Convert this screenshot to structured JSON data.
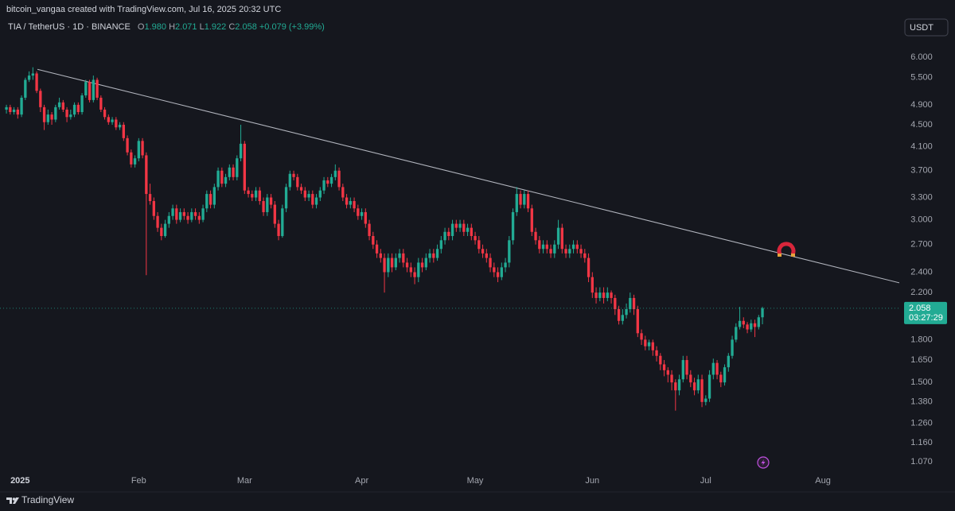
{
  "header": {
    "credit": "bitcoin_vangaa created with TradingView.com, Jul 16, 2025 20:32 UTC"
  },
  "footer": {
    "brand": "TradingView"
  },
  "chart_data": {
    "type": "candlestick",
    "title": "TIA / TetherUS · 1D · BINANCE",
    "legend": {
      "open_label": "O",
      "open": "1.980",
      "high_label": "H",
      "high": "2.071",
      "low_label": "L",
      "low": "1.922",
      "close_label": "C",
      "close": "2.058",
      "change": "+0.079 (+3.99%)"
    },
    "currency": "USDT",
    "last_price_label": "2.058",
    "countdown": "03:27:29",
    "up_color": "#22ab94",
    "down_color": "#f23645",
    "log_scale": true,
    "xlim": [
      -1.7,
      236.2
    ],
    "ylim": [
      1.02,
      7.66
    ],
    "yticks": [
      {
        "value": 6,
        "label": "6.000"
      },
      {
        "value": 5.5,
        "label": "5.500"
      },
      {
        "value": 4.9,
        "label": "4.900"
      },
      {
        "value": 4.5,
        "label": "4.500"
      },
      {
        "value": 4.1,
        "label": "4.100"
      },
      {
        "value": 3.7,
        "label": "3.700"
      },
      {
        "value": 3.3,
        "label": "3.300"
      },
      {
        "value": 3,
        "label": "3.000"
      },
      {
        "value": 2.7,
        "label": "2.700"
      },
      {
        "value": 2.4,
        "label": "2.400"
      },
      {
        "value": 2.2,
        "label": "2.200"
      },
      {
        "value": 1.8,
        "label": "1.800"
      },
      {
        "value": 1.65,
        "label": "1.650"
      },
      {
        "value": 1.5,
        "label": "1.500"
      },
      {
        "value": 1.38,
        "label": "1.380"
      },
      {
        "value": 1.26,
        "label": "1.260"
      },
      {
        "value": 1.16,
        "label": "1.160"
      },
      {
        "value": 1.07,
        "label": "1.070"
      }
    ],
    "xticks": [
      {
        "value": 4,
        "label": "2025"
      },
      {
        "value": 35,
        "label": "Feb"
      },
      {
        "value": 63,
        "label": "Mar"
      },
      {
        "value": 94,
        "label": "Apr"
      },
      {
        "value": 124,
        "label": "May"
      },
      {
        "value": 155,
        "label": "Jun"
      },
      {
        "value": 185,
        "label": "Jul"
      },
      {
        "value": 216,
        "label": "Aug"
      }
    ],
    "trendline": {
      "x": [
        8.2,
        237.7
      ],
      "y": [
        5.7,
        2.28
      ]
    },
    "open": [
      4.8,
      4.85,
      4.75,
      4.8,
      4.7,
      5.05,
      5.45,
      5.55,
      5.6,
      5.2,
      4.85,
      4.55,
      4.7,
      4.6,
      4.85,
      4.95,
      4.8,
      4.65,
      4.7,
      4.9,
      4.75,
      5.1,
      5.4,
      5.0,
      5.45,
      5.05,
      4.8,
      4.65,
      4.55,
      4.6,
      4.45,
      4.5,
      4.25,
      4.0,
      3.8,
      3.9,
      4.2,
      3.95,
      3.35,
      3.25,
      3.05,
      2.9,
      2.8,
      2.95,
      3.05,
      3.15,
      3.0,
      3.1,
      3.05,
      3.0,
      3.1,
      3.05,
      3.0,
      3.15,
      3.35,
      3.2,
      3.45,
      3.7,
      3.5,
      3.6,
      3.75,
      3.6,
      3.9,
      4.15,
      3.4,
      3.35,
      3.3,
      3.4,
      3.25,
      3.1,
      3.3,
      3.2,
      2.95,
      2.8,
      3.15,
      3.45,
      3.65,
      3.6,
      3.45,
      3.4,
      3.3,
      3.35,
      3.2,
      3.3,
      3.4,
      3.55,
      3.5,
      3.6,
      3.7,
      3.45,
      3.3,
      3.2,
      3.25,
      3.15,
      3.05,
      3.1,
      2.95,
      2.8,
      2.7,
      2.6,
      2.55,
      2.4,
      2.55,
      2.45,
      2.55,
      2.6,
      2.5,
      2.45,
      2.4,
      2.35,
      2.5,
      2.45,
      2.55,
      2.6,
      2.55,
      2.65,
      2.75,
      2.85,
      2.8,
      2.95,
      2.9,
      2.95,
      2.85,
      2.9,
      2.8,
      2.75,
      2.65,
      2.6,
      2.55,
      2.45,
      2.4,
      2.35,
      2.45,
      2.5,
      2.75,
      3.1,
      3.35,
      3.2,
      3.35,
      3.15,
      2.85,
      2.75,
      2.65,
      2.7,
      2.65,
      2.6,
      2.7,
      2.9,
      2.65,
      2.6,
      2.65,
      2.7,
      2.65,
      2.6,
      2.55,
      2.35,
      2.2,
      2.15,
      2.2,
      2.15,
      2.2,
      2.15,
      2.05,
      1.95,
      2.0,
      2.05,
      2.15,
      2.05,
      1.85,
      1.8,
      1.75,
      1.78,
      1.72,
      1.68,
      1.62,
      1.58,
      1.55,
      1.5,
      1.45,
      1.52,
      1.65,
      1.55,
      1.5,
      1.45,
      1.52,
      1.38,
      1.4,
      1.55,
      1.63,
      1.55,
      1.5,
      1.6,
      1.68,
      1.8,
      1.9,
      1.95,
      1.92,
      1.88,
      1.93,
      1.9,
      1.98
    ],
    "high": [
      4.9,
      4.9,
      4.85,
      4.85,
      5.1,
      5.5,
      5.65,
      5.75,
      5.65,
      5.25,
      4.9,
      4.8,
      4.75,
      4.9,
      5.05,
      5.0,
      4.85,
      4.8,
      4.95,
      4.95,
      5.15,
      5.45,
      5.45,
      5.55,
      5.5,
      5.1,
      4.85,
      4.7,
      4.65,
      4.65,
      4.55,
      4.55,
      4.3,
      4.05,
      3.95,
      4.25,
      4.25,
      4.0,
      3.5,
      3.3,
      3.1,
      2.95,
      3.0,
      3.1,
      3.2,
      3.2,
      3.15,
      3.15,
      3.1,
      3.15,
      3.15,
      3.1,
      3.2,
      3.4,
      3.4,
      3.5,
      3.75,
      3.75,
      3.65,
      3.8,
      3.8,
      3.95,
      4.5,
      4.2,
      3.45,
      3.4,
      3.45,
      3.45,
      3.3,
      3.35,
      3.35,
      3.25,
      3.0,
      3.2,
      3.5,
      3.7,
      3.7,
      3.65,
      3.5,
      3.45,
      3.4,
      3.4,
      3.35,
      3.45,
      3.6,
      3.6,
      3.65,
      3.8,
      3.75,
      3.5,
      3.35,
      3.3,
      3.3,
      3.2,
      3.15,
      3.15,
      3.0,
      2.85,
      2.75,
      2.65,
      2.6,
      2.6,
      2.6,
      2.6,
      2.65,
      2.65,
      2.55,
      2.5,
      2.45,
      2.55,
      2.55,
      2.6,
      2.65,
      2.65,
      2.7,
      2.8,
      2.9,
      2.9,
      3.0,
      3.0,
      3.0,
      3.0,
      2.95,
      2.95,
      2.85,
      2.8,
      2.7,
      2.65,
      2.6,
      2.5,
      2.45,
      2.5,
      2.55,
      2.8,
      3.15,
      3.45,
      3.4,
      3.4,
      3.4,
      3.2,
      2.9,
      2.8,
      2.75,
      2.75,
      2.7,
      2.75,
      3.0,
      2.95,
      2.7,
      2.7,
      2.75,
      2.75,
      2.7,
      2.65,
      2.6,
      2.4,
      2.25,
      2.25,
      2.25,
      2.25,
      2.22,
      2.18,
      2.08,
      2.05,
      2.1,
      2.2,
      2.18,
      2.08,
      1.88,
      1.83,
      1.8,
      1.8,
      1.75,
      1.7,
      1.65,
      1.6,
      1.58,
      1.52,
      1.55,
      1.68,
      1.68,
      1.58,
      1.53,
      1.55,
      1.55,
      1.42,
      1.58,
      1.66,
      1.65,
      1.57,
      1.62,
      1.7,
      1.83,
      1.93,
      2.07,
      1.98,
      1.94,
      1.96,
      1.96,
      2.0,
      2.071
    ],
    "low": [
      4.72,
      4.7,
      4.7,
      4.62,
      4.65,
      5.0,
      5.4,
      5.45,
      5.15,
      4.75,
      4.4,
      4.5,
      4.5,
      4.55,
      4.8,
      4.75,
      4.55,
      4.6,
      4.65,
      4.7,
      4.7,
      5.05,
      4.95,
      4.95,
      5.0,
      4.75,
      4.6,
      4.5,
      4.5,
      4.4,
      4.4,
      4.2,
      3.95,
      3.75,
      3.75,
      3.85,
      3.9,
      2.37,
      3.2,
      3.0,
      2.85,
      2.75,
      2.78,
      2.9,
      3.0,
      2.95,
      2.97,
      3.0,
      2.95,
      2.97,
      3.0,
      2.95,
      2.97,
      3.1,
      3.15,
      3.15,
      3.4,
      3.45,
      3.45,
      3.55,
      3.55,
      3.55,
      3.85,
      3.35,
      3.3,
      3.25,
      3.25,
      3.2,
      3.05,
      3.05,
      3.15,
      2.9,
      2.75,
      2.78,
      3.1,
      3.4,
      3.55,
      3.4,
      3.35,
      3.25,
      3.25,
      3.15,
      3.15,
      3.25,
      3.35,
      3.45,
      3.45,
      3.55,
      3.4,
      3.25,
      3.15,
      3.15,
      3.1,
      3.0,
      3.0,
      2.9,
      2.75,
      2.65,
      2.55,
      2.5,
      2.2,
      2.35,
      2.4,
      2.42,
      2.5,
      2.45,
      2.4,
      2.35,
      2.28,
      2.3,
      2.4,
      2.42,
      2.5,
      2.5,
      2.52,
      2.6,
      2.7,
      2.75,
      2.75,
      2.85,
      2.85,
      2.8,
      2.8,
      2.75,
      2.7,
      2.6,
      2.55,
      2.5,
      2.4,
      2.35,
      2.3,
      2.32,
      2.4,
      2.45,
      2.7,
      3.05,
      3.15,
      3.15,
      3.1,
      2.8,
      2.7,
      2.6,
      2.6,
      2.6,
      2.55,
      2.55,
      2.65,
      2.6,
      2.55,
      2.55,
      2.6,
      2.6,
      2.55,
      2.5,
      2.3,
      2.15,
      2.1,
      2.12,
      2.1,
      2.12,
      2.1,
      2.0,
      1.92,
      1.92,
      1.97,
      2.02,
      2.0,
      1.82,
      1.76,
      1.72,
      1.72,
      1.68,
      1.64,
      1.58,
      1.54,
      1.5,
      1.45,
      1.33,
      1.42,
      1.5,
      1.52,
      1.47,
      1.42,
      1.43,
      1.35,
      1.36,
      1.38,
      1.52,
      1.52,
      1.47,
      1.48,
      1.57,
      1.66,
      1.78,
      1.88,
      1.89,
      1.85,
      1.86,
      1.82,
      1.88,
      1.922
    ],
    "close": [
      4.85,
      4.75,
      4.8,
      4.7,
      5.05,
      5.45,
      5.55,
      5.6,
      5.2,
      4.85,
      4.55,
      4.7,
      4.6,
      4.85,
      4.95,
      4.8,
      4.65,
      4.7,
      4.9,
      4.75,
      5.1,
      5.4,
      5.0,
      5.45,
      5.05,
      4.8,
      4.65,
      4.55,
      4.6,
      4.45,
      4.5,
      4.25,
      4.0,
      3.8,
      3.9,
      4.2,
      3.95,
      3.35,
      3.25,
      3.05,
      2.9,
      2.8,
      2.95,
      3.05,
      3.15,
      3.0,
      3.1,
      3.05,
      3.0,
      3.1,
      3.05,
      3.0,
      3.15,
      3.35,
      3.2,
      3.45,
      3.7,
      3.5,
      3.6,
      3.75,
      3.6,
      3.9,
      4.15,
      3.4,
      3.35,
      3.3,
      3.4,
      3.25,
      3.1,
      3.3,
      3.2,
      2.95,
      2.8,
      3.15,
      3.45,
      3.65,
      3.6,
      3.45,
      3.4,
      3.3,
      3.35,
      3.2,
      3.3,
      3.4,
      3.55,
      3.5,
      3.6,
      3.7,
      3.45,
      3.3,
      3.2,
      3.25,
      3.15,
      3.05,
      3.1,
      2.95,
      2.8,
      2.7,
      2.6,
      2.55,
      2.4,
      2.55,
      2.45,
      2.55,
      2.6,
      2.5,
      2.45,
      2.4,
      2.35,
      2.5,
      2.45,
      2.55,
      2.6,
      2.55,
      2.65,
      2.75,
      2.85,
      2.8,
      2.95,
      2.9,
      2.95,
      2.85,
      2.9,
      2.8,
      2.75,
      2.65,
      2.6,
      2.55,
      2.45,
      2.4,
      2.35,
      2.45,
      2.5,
      2.75,
      3.1,
      3.35,
      3.2,
      3.35,
      3.15,
      2.85,
      2.75,
      2.65,
      2.7,
      2.65,
      2.6,
      2.7,
      2.9,
      2.65,
      2.6,
      2.65,
      2.7,
      2.65,
      2.6,
      2.55,
      2.35,
      2.2,
      2.15,
      2.2,
      2.15,
      2.2,
      2.15,
      2.05,
      1.95,
      2.0,
      2.05,
      2.15,
      2.05,
      1.85,
      1.8,
      1.75,
      1.78,
      1.72,
      1.68,
      1.62,
      1.58,
      1.55,
      1.5,
      1.45,
      1.52,
      1.65,
      1.55,
      1.5,
      1.45,
      1.52,
      1.38,
      1.4,
      1.55,
      1.63,
      1.55,
      1.5,
      1.6,
      1.68,
      1.8,
      1.9,
      1.95,
      1.92,
      1.88,
      1.93,
      1.9,
      1.98,
      2.058
    ]
  }
}
